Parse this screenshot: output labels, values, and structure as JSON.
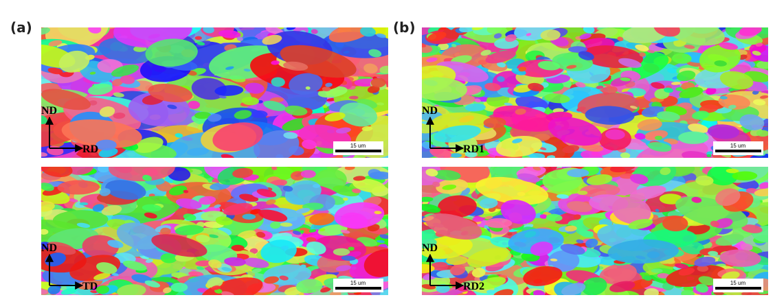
{
  "panels": [
    {
      "label": "(a)",
      "images": [
        {
          "axis_y": "ND",
          "axis_x": "RD",
          "scale_bar": "15 um"
        },
        {
          "axis_y": "ND",
          "axis_x": "TD",
          "scale_bar": "15 um"
        }
      ]
    },
    {
      "label": "(b)",
      "images": [
        {
          "axis_y": "ND",
          "axis_x": "RD1",
          "scale_bar": "15 um"
        },
        {
          "axis_y": "ND",
          "axis_x": "RD2",
          "scale_bar": "15 um"
        }
      ]
    }
  ]
}
